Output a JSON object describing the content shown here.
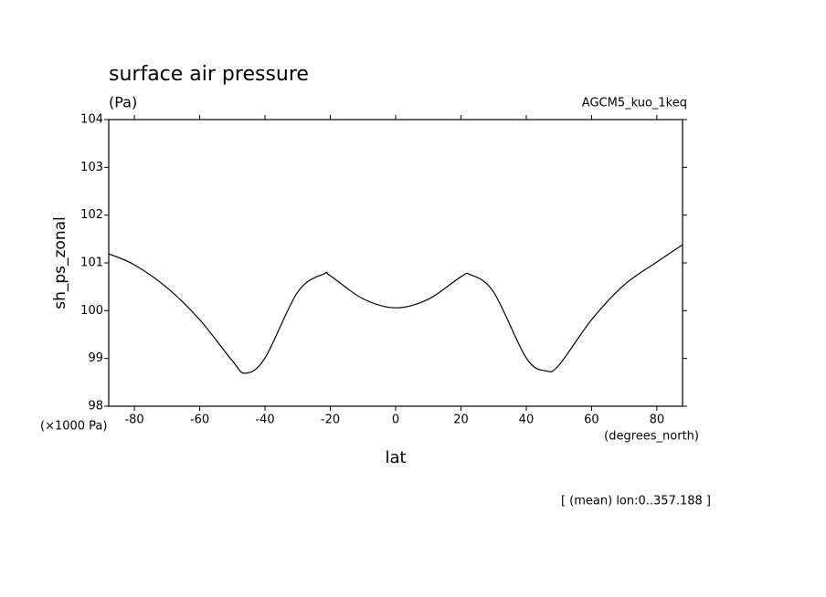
{
  "chart_data": {
    "type": "line",
    "title": "surface air pressure",
    "subtitle": "(Pa)",
    "annotation_right": "AGCM5_kuo_1keq",
    "y_label": "sh_ps_zonal",
    "y_unit": "(×1000 Pa)",
    "x_label": "lat",
    "x_unit": "(degrees_north)",
    "footnote": "[ (mean) lon:0..357.188 ]",
    "x": [
      -87.86,
      -80,
      -70,
      -60,
      -50,
      -46,
      -40,
      -30,
      -22,
      -20,
      -10,
      0,
      10,
      20,
      23,
      30,
      40,
      46,
      50,
      60,
      70,
      80,
      87.86
    ],
    "series": [
      {
        "name": "sh_ps_zonal",
        "color": "#000000",
        "values": [
          101.19,
          100.96,
          100.48,
          99.81,
          98.95,
          98.69,
          99.01,
          100.39,
          100.77,
          100.73,
          100.25,
          100.06,
          100.24,
          100.71,
          100.75,
          100.39,
          99.01,
          98.74,
          98.86,
          99.81,
          100.54,
          101.02,
          101.38
        ]
      }
    ],
    "xlim": [
      -87.86,
      87.86
    ],
    "xticks": [
      -80,
      -60,
      -40,
      -20,
      0,
      20,
      40,
      60,
      80
    ],
    "ylim": [
      98,
      104
    ],
    "yticks": [
      98,
      99,
      100,
      101,
      102,
      103,
      104
    ],
    "grid": false
  }
}
